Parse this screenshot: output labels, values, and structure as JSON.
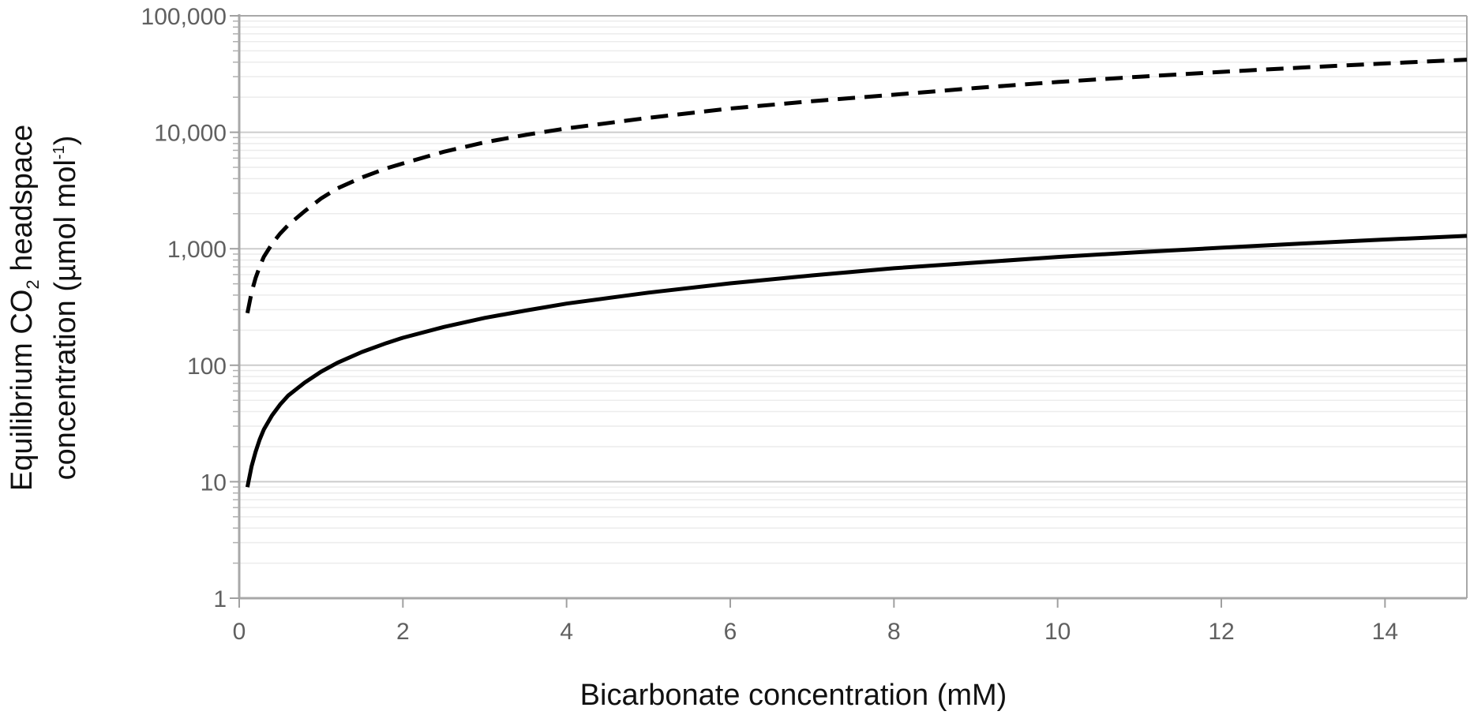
{
  "chart_data": {
    "type": "line",
    "xlabel": "Bicarbonate concentration (mM)",
    "ylabel": {
      "line1_pre": "Equilibrium CO",
      "line1_sub": "2",
      "line1_post": " headspace",
      "line2_pre": "concentration (µmol mol",
      "line2_sup": "-1",
      "line2_post": ")"
    },
    "xlim": [
      0,
      15
    ],
    "ylim": [
      1,
      100000
    ],
    "yscale": "log",
    "x_ticks": [
      0,
      2,
      4,
      6,
      8,
      10,
      12,
      14
    ],
    "x_tick_labels": [
      "0",
      "2",
      "4",
      "6",
      "8",
      "10",
      "12",
      "14"
    ],
    "y_ticks": [
      1,
      10,
      100,
      1000,
      10000,
      100000
    ],
    "y_tick_labels": [
      "1",
      "10",
      "100",
      "1,000",
      "10,000",
      "100,000"
    ],
    "grid": "horizontal major and minor",
    "series": [
      {
        "style": "dashed",
        "color": "#000000",
        "x": [
          0.1,
          0.15,
          0.2,
          0.25,
          0.3,
          0.4,
          0.5,
          0.6,
          0.8,
          1.0,
          1.2,
          1.5,
          1.8,
          2.0,
          2.5,
          3.0,
          3.5,
          4.0,
          5.0,
          6.0,
          7.0,
          8.0,
          9.0,
          10.0,
          11.0,
          12.0,
          13.0,
          14.0,
          15.0
        ],
        "y": [
          280,
          420,
          560,
          700,
          850,
          1100,
          1350,
          1600,
          2100,
          2700,
          3300,
          4100,
          4900,
          5400,
          6800,
          8200,
          9500,
          10800,
          13300,
          16000,
          18500,
          21000,
          24000,
          27000,
          30000,
          33000,
          36000,
          39000,
          42000
        ]
      },
      {
        "style": "solid",
        "color": "#000000",
        "x": [
          0.1,
          0.15,
          0.2,
          0.25,
          0.3,
          0.4,
          0.5,
          0.6,
          0.8,
          1.0,
          1.2,
          1.5,
          1.8,
          2.0,
          2.5,
          3.0,
          3.5,
          4.0,
          5.0,
          6.0,
          7.0,
          8.0,
          9.0,
          10.0,
          11.0,
          12.0,
          13.0,
          14.0,
          15.0
        ],
        "y": [
          9,
          13.5,
          18,
          23,
          28,
          37,
          46,
          55,
          71,
          88,
          105,
          130,
          155,
          172,
          213,
          255,
          295,
          338,
          420,
          505,
          590,
          680,
          760,
          850,
          935,
          1020,
          1110,
          1200,
          1290
        ]
      }
    ]
  }
}
